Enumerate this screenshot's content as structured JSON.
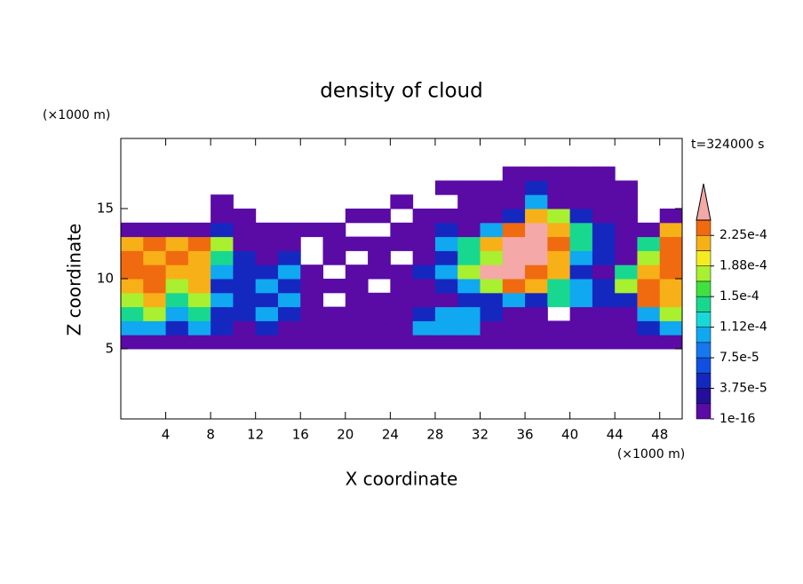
{
  "chart_data": {
    "type": "contour",
    "title": "density of cloud",
    "y_unit": "(×1000 m)",
    "x_unit": "(×1000 m)",
    "annotation": "t=324000 s",
    "xlabel": "X coordinate",
    "ylabel": "Z coordinate",
    "xlim": [
      0,
      50
    ],
    "ylim": [
      0,
      20
    ],
    "xticks": [
      4,
      8,
      12,
      16,
      20,
      24,
      28,
      32,
      36,
      40,
      44,
      48
    ],
    "yticks": [
      5,
      10,
      15
    ],
    "x_edges": [
      0,
      2,
      4,
      6,
      8,
      10,
      12,
      14,
      16,
      18,
      20,
      22,
      24,
      26,
      28,
      30,
      32,
      34,
      36,
      38,
      40,
      42,
      44,
      46,
      48,
      50
    ],
    "z_edges": [
      5,
      6,
      7,
      8,
      9,
      10,
      11,
      12,
      13,
      14,
      15,
      16,
      17,
      18
    ],
    "values": [
      [
        1e-05,
        1e-05,
        1e-05,
        1e-05,
        1e-05,
        1e-05,
        1e-05,
        1e-05,
        1e-05,
        1e-05,
        1e-05,
        1e-05,
        1e-05,
        1e-05,
        1e-05,
        1e-05,
        1e-05,
        1e-05,
        1e-05,
        1e-05,
        1e-05,
        1e-05,
        1e-05,
        1e-05,
        1e-05
      ],
      [
        0.0001,
        0.0001,
        5e-05,
        0.0001,
        5e-05,
        1e-05,
        5e-05,
        1e-05,
        1e-05,
        1e-05,
        1e-05,
        1e-05,
        1e-05,
        0.0001,
        0.0001,
        0.0001,
        1e-05,
        1e-05,
        1e-05,
        1e-05,
        1e-05,
        1e-05,
        1e-05,
        5e-05,
        0.0001
      ],
      [
        0.00014,
        0.00018,
        0.0001,
        0.00014,
        5e-05,
        5e-05,
        0.0001,
        5e-05,
        1e-05,
        1e-05,
        1e-05,
        1e-05,
        1e-05,
        5e-05,
        0.0001,
        0.0001,
        5e-05,
        1e-05,
        1e-05,
        null,
        1e-05,
        1e-05,
        1e-05,
        0.0001,
        0.00018
      ],
      [
        0.00018,
        0.00021,
        0.00014,
        0.00018,
        0.0001,
        5e-05,
        5e-05,
        0.0001,
        1e-05,
        null,
        1e-05,
        1e-05,
        1e-05,
        1e-05,
        1e-05,
        5e-05,
        5e-05,
        0.0001,
        5e-05,
        0.00014,
        0.0001,
        5e-05,
        5e-05,
        0.000235,
        0.00021
      ],
      [
        0.00021,
        0.000235,
        0.00018,
        0.00021,
        5e-05,
        5e-05,
        0.0001,
        5e-05,
        1e-05,
        1e-05,
        1e-05,
        null,
        1e-05,
        1e-05,
        5e-05,
        0.0001,
        0.00018,
        0.000235,
        0.00021,
        0.00014,
        0.0001,
        5e-05,
        0.00018,
        0.000235,
        0.00021
      ],
      [
        0.000235,
        0.000235,
        0.00021,
        0.00021,
        0.0001,
        5e-05,
        5e-05,
        0.0001,
        1e-05,
        null,
        1e-05,
        1e-05,
        1e-05,
        5e-05,
        0.0001,
        0.00018,
        0.00026,
        0.00026,
        0.000235,
        0.00021,
        5e-05,
        1e-05,
        0.00014,
        0.00021,
        0.000235
      ],
      [
        0.000235,
        0.00021,
        0.000235,
        0.00021,
        0.00014,
        5e-05,
        1e-05,
        5e-05,
        null,
        1e-05,
        null,
        1e-05,
        null,
        1e-05,
        5e-05,
        0.00014,
        0.00018,
        0.00026,
        0.00026,
        0.00021,
        0.0001,
        5e-05,
        1e-05,
        0.00018,
        0.000235
      ],
      [
        0.00021,
        0.000235,
        0.00021,
        0.000235,
        0.00018,
        1e-05,
        1e-05,
        1e-05,
        null,
        1e-05,
        1e-05,
        1e-05,
        1e-05,
        1e-05,
        0.0001,
        0.00014,
        0.00021,
        0.00026,
        0.00026,
        0.000235,
        0.00014,
        5e-05,
        1e-05,
        0.00014,
        0.000235
      ],
      [
        1e-05,
        1e-05,
        1e-05,
        1e-05,
        5e-05,
        1e-05,
        1e-05,
        1e-05,
        1e-05,
        1e-05,
        null,
        null,
        1e-05,
        1e-05,
        5e-05,
        1e-05,
        0.0001,
        0.000235,
        0.00026,
        0.00021,
        0.00014,
        5e-05,
        1e-05,
        1e-05,
        0.00021
      ],
      [
        null,
        null,
        null,
        null,
        1e-05,
        1e-05,
        null,
        null,
        null,
        null,
        1e-05,
        1e-05,
        null,
        1e-05,
        1e-05,
        1e-05,
        1e-05,
        5e-05,
        0.00021,
        0.00018,
        5e-05,
        1e-05,
        1e-05,
        null,
        1e-05
      ],
      [
        null,
        null,
        null,
        null,
        1e-05,
        null,
        null,
        null,
        null,
        null,
        null,
        null,
        1e-05,
        null,
        null,
        1e-05,
        1e-05,
        1e-05,
        0.0001,
        1e-05,
        1e-05,
        1e-05,
        1e-05,
        null,
        null
      ],
      [
        null,
        null,
        null,
        null,
        null,
        null,
        null,
        null,
        null,
        null,
        null,
        null,
        null,
        null,
        1e-05,
        1e-05,
        1e-05,
        1e-05,
        5e-05,
        1e-05,
        1e-05,
        1e-05,
        1e-05,
        null,
        null
      ],
      [
        null,
        null,
        null,
        null,
        null,
        null,
        null,
        null,
        null,
        null,
        null,
        null,
        null,
        null,
        null,
        null,
        null,
        1e-05,
        1e-05,
        1e-05,
        1e-05,
        1e-05,
        null,
        null,
        null
      ]
    ],
    "colorbar": {
      "levels": [
        1e-16,
        1.875e-05,
        3.75e-05,
        5.625e-05,
        7.5e-05,
        9.375e-05,
        0.0001125,
        0.00013125,
        0.00015,
        0.00016875,
        0.0001875,
        0.00020625,
        0.000225,
        0.00024375
      ],
      "colors": [
        "#5a0aa5",
        "#250f9a",
        "#1428c0",
        "#1050e0",
        "#1478f0",
        "#10a8f0",
        "#18d8d8",
        "#18d890",
        "#40e040",
        "#a8f030",
        "#f4ec20",
        "#f8b018",
        "#f06a10"
      ],
      "overflow_color": "#f4a8a8",
      "ticks": [
        1e-16,
        {
          "value": 3.75e-05,
          "label": "3.75e-5"
        },
        {
          "value": 7.5e-05,
          "label": "7.5e-5"
        },
        {
          "value": 0.0001125,
          "label": "1.12e-4"
        },
        {
          "value": 0.00015,
          "label": "1.5e-4"
        },
        {
          "value": 0.0001875,
          "label": "1.88e-4"
        },
        {
          "value": 0.000225,
          "label": "2.25e-4"
        }
      ]
    }
  }
}
